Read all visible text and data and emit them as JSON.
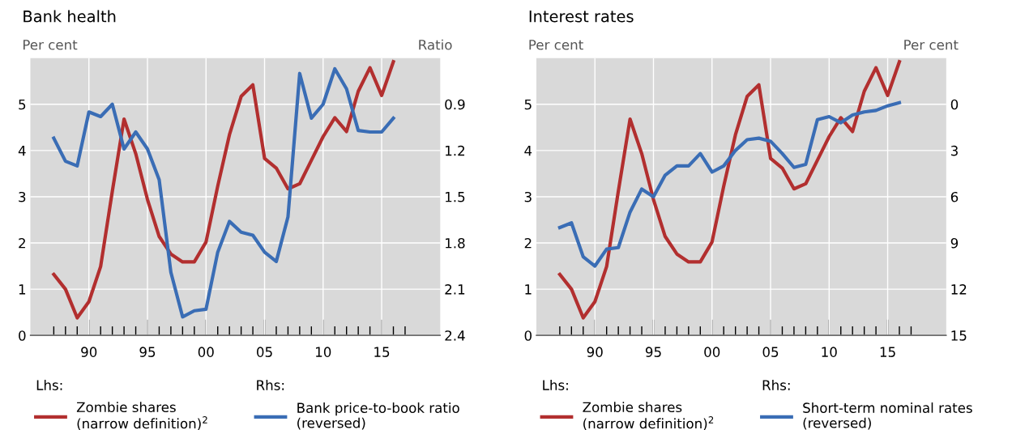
{
  "chart_data": [
    {
      "type": "line",
      "title": "Bank health",
      "ylabel": "Per cent",
      "y2label": "Ratio",
      "grid": true,
      "legend": "bottom",
      "annotations": [
        "Lhs:",
        "Rhs:"
      ],
      "x": [
        1987,
        1988,
        1989,
        1990,
        1991,
        1992,
        1993,
        1994,
        1995,
        1996,
        1997,
        1998,
        1999,
        2000,
        2001,
        2002,
        2003,
        2004,
        2005,
        2006,
        2007,
        2008,
        2009,
        2010,
        2011,
        2012,
        2013,
        2014,
        2015,
        2016
      ],
      "xlim": [
        1985,
        2020
      ],
      "xticks": [
        {
          "value": 1987,
          "label": null
        },
        {
          "value": 1988,
          "label": null
        },
        {
          "value": 1989,
          "label": null
        },
        {
          "value": 1990,
          "label": "90"
        },
        {
          "value": 1991,
          "label": null
        },
        {
          "value": 1992,
          "label": null
        },
        {
          "value": 1993,
          "label": null
        },
        {
          "value": 1994,
          "label": null
        },
        {
          "value": 1995,
          "label": "95"
        },
        {
          "value": 1996,
          "label": null
        },
        {
          "value": 1997,
          "label": null
        },
        {
          "value": 1998,
          "label": null
        },
        {
          "value": 1999,
          "label": null
        },
        {
          "value": 2000,
          "label": "00"
        },
        {
          "value": 2001,
          "label": null
        },
        {
          "value": 2002,
          "label": null
        },
        {
          "value": 2003,
          "label": null
        },
        {
          "value": 2004,
          "label": null
        },
        {
          "value": 2005,
          "label": "05"
        },
        {
          "value": 2006,
          "label": null
        },
        {
          "value": 2007,
          "label": null
        },
        {
          "value": 2008,
          "label": null
        },
        {
          "value": 2009,
          "label": null
        },
        {
          "value": 2010,
          "label": "10"
        },
        {
          "value": 2011,
          "label": null
        },
        {
          "value": 2012,
          "label": null
        },
        {
          "value": 2013,
          "label": null
        },
        {
          "value": 2014,
          "label": null
        },
        {
          "value": 2015,
          "label": "15"
        },
        {
          "value": 2016,
          "label": null
        },
        {
          "value": 2017,
          "label": null
        }
      ],
      "ylim": [
        0,
        6
      ],
      "yticks": [
        0,
        1,
        2,
        3,
        4,
        5
      ],
      "y2lim": [
        2.4,
        0.6
      ],
      "y2ticks": [
        2.4,
        2.1,
        1.8,
        1.5,
        1.2,
        0.9
      ],
      "series": [
        {
          "name": "Zombie shares\n(narrow definition)$^{2}$",
          "color": "#b22f2f",
          "values": [
            1.32,
            1.0,
            0.38,
            0.73,
            1.49,
            3.12,
            4.68,
            3.93,
            2.94,
            2.14,
            1.76,
            1.59,
            1.59,
            2.02,
            3.23,
            4.34,
            5.17,
            5.42,
            3.83,
            3.62,
            3.17,
            3.28,
            3.79,
            4.3,
            4.71,
            4.41,
            5.28,
            5.79,
            5.19,
            5.92
          ]
        },
        {
          "name": "Bank price-to-book ratio\n(reversed)",
          "color": "#3a6db5",
          "axis": "y2",
          "values": [
            1.12,
            1.27,
            1.3,
            0.95,
            0.98,
            0.9,
            1.19,
            1.08,
            1.19,
            1.39,
            1.99,
            2.28,
            2.24,
            2.23,
            1.86,
            1.66,
            1.73,
            1.75,
            1.86,
            1.92,
            1.63,
            0.7,
            0.99,
            0.9,
            0.67,
            0.8,
            1.07,
            1.08,
            1.08,
            0.99
          ]
        }
      ]
    },
    {
      "type": "line",
      "title": "Interest rates",
      "ylabel": "Per cent",
      "y2label": "Per cent",
      "grid": true,
      "legend": "bottom",
      "annotations": [
        "Lhs:",
        "Rhs:"
      ],
      "x": [
        1987,
        1988,
        1989,
        1990,
        1991,
        1992,
        1993,
        1994,
        1995,
        1996,
        1997,
        1998,
        1999,
        2000,
        2001,
        2002,
        2003,
        2004,
        2005,
        2006,
        2007,
        2008,
        2009,
        2010,
        2011,
        2012,
        2013,
        2014,
        2015,
        2016
      ],
      "xlim": [
        1985,
        2020
      ],
      "xticks": [
        {
          "value": 1987,
          "label": null
        },
        {
          "value": 1988,
          "label": null
        },
        {
          "value": 1989,
          "label": null
        },
        {
          "value": 1990,
          "label": "90"
        },
        {
          "value": 1991,
          "label": null
        },
        {
          "value": 1992,
          "label": null
        },
        {
          "value": 1993,
          "label": null
        },
        {
          "value": 1994,
          "label": null
        },
        {
          "value": 1995,
          "label": "95"
        },
        {
          "value": 1996,
          "label": null
        },
        {
          "value": 1997,
          "label": null
        },
        {
          "value": 1998,
          "label": null
        },
        {
          "value": 1999,
          "label": null
        },
        {
          "value": 2000,
          "label": "00"
        },
        {
          "value": 2001,
          "label": null
        },
        {
          "value": 2002,
          "label": null
        },
        {
          "value": 2003,
          "label": null
        },
        {
          "value": 2004,
          "label": null
        },
        {
          "value": 2005,
          "label": "05"
        },
        {
          "value": 2006,
          "label": null
        },
        {
          "value": 2007,
          "label": null
        },
        {
          "value": 2008,
          "label": null
        },
        {
          "value": 2009,
          "label": null
        },
        {
          "value": 2010,
          "label": "10"
        },
        {
          "value": 2011,
          "label": null
        },
        {
          "value": 2012,
          "label": null
        },
        {
          "value": 2013,
          "label": null
        },
        {
          "value": 2014,
          "label": null
        },
        {
          "value": 2015,
          "label": "15"
        },
        {
          "value": 2016,
          "label": null
        },
        {
          "value": 2017,
          "label": null
        }
      ],
      "ylim": [
        0,
        6
      ],
      "yticks": [
        0,
        1,
        2,
        3,
        4,
        5
      ],
      "y2lim": [
        15,
        -3
      ],
      "y2ticks": [
        15,
        12,
        9,
        6,
        3,
        0
      ],
      "series": [
        {
          "name": "Zombie shares\n(narrow definition)$^{2}$",
          "color": "#b22f2f",
          "values": [
            1.32,
            1.0,
            0.38,
            0.73,
            1.49,
            3.12,
            4.68,
            3.93,
            2.94,
            2.14,
            1.76,
            1.59,
            1.59,
            2.02,
            3.23,
            4.34,
            5.17,
            5.42,
            3.83,
            3.62,
            3.17,
            3.28,
            3.79,
            4.3,
            4.71,
            4.41,
            5.28,
            5.79,
            5.19,
            5.92
          ]
        },
        {
          "name": "Short-term nominal rates\n(reversed)",
          "color": "#3a6db5",
          "axis": "y2",
          "values": [
            8.0,
            7.7,
            9.9,
            10.5,
            9.4,
            9.3,
            7.0,
            5.5,
            6.0,
            4.6,
            4.0,
            4.0,
            3.2,
            4.4,
            4.0,
            3.0,
            2.3,
            2.2,
            2.4,
            3.2,
            4.1,
            3.9,
            1.0,
            0.8,
            1.2,
            0.7,
            0.5,
            0.4,
            0.1,
            -0.1
          ]
        }
      ]
    }
  ]
}
